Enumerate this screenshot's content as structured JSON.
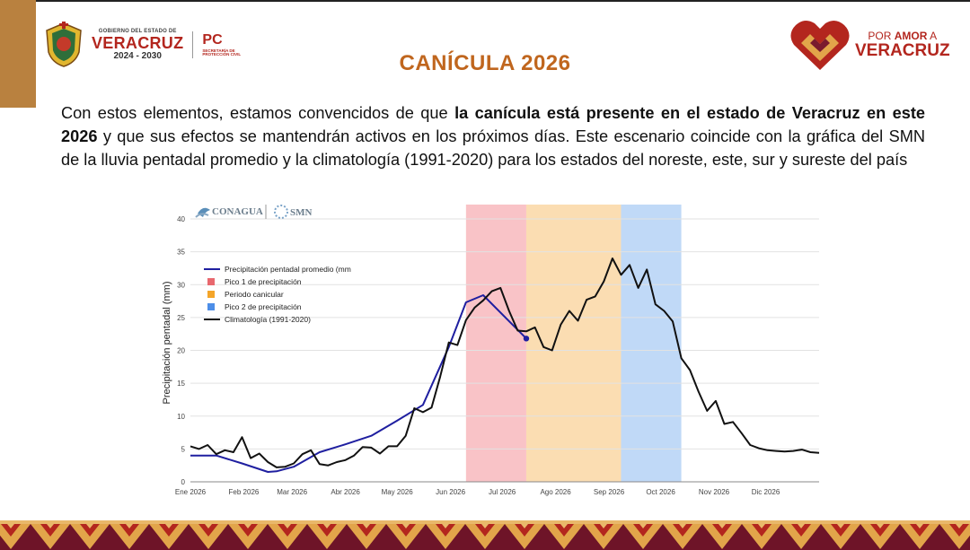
{
  "header": {
    "gov_small": "GOBIERNO DEL ESTADO DE",
    "gov_big": "VERACRUZ",
    "gov_years": "2024 - 2030",
    "pc_big": "PC",
    "pc_small": "SECRETARÍA DE PROTECCIÓN CIVIL",
    "amor_small_1": "POR ",
    "amor_small_2": "AMOR",
    "amor_small_3": " A",
    "amor_big": "VERACRUZ"
  },
  "slide": {
    "title": "CANÍCULA 2026",
    "p1": "Con estos elementos, estamos convencidos de que ",
    "p2": "la canícula está presente en el estado de Veracruz en este 2026",
    "p3": " y que sus efectos se mantendrán activos en los próximos días. Este escenario coincide con la gráfica del SMN de la lluvia pentadal promedio y la climatología (1991-2020) para los estados del noreste, este, sur y sureste del país"
  },
  "chart_data": {
    "type": "line",
    "logos": [
      "CONAGUA",
      "SMN"
    ],
    "ylabel": "Precipitación pentadal (mm)",
    "xlabel": "",
    "ylim": [
      0,
      40
    ],
    "yticks": [
      0,
      5,
      10,
      15,
      20,
      25,
      30,
      35,
      40
    ],
    "xlim": [
      0,
      365
    ],
    "xticks": [
      {
        "label": "Ene 2026",
        "day": 0
      },
      {
        "label": "Feb 2026",
        "day": 31
      },
      {
        "label": "Mar 2026",
        "day": 59
      },
      {
        "label": "Abr 2026",
        "day": 90
      },
      {
        "label": "May 2026",
        "day": 120
      },
      {
        "label": "Jun 2026",
        "day": 151
      },
      {
        "label": "Jul 2026",
        "day": 181
      },
      {
        "label": "Ago 2026",
        "day": 212
      },
      {
        "label": "Sep 2026",
        "day": 243
      },
      {
        "label": "Oct 2026",
        "day": 273
      },
      {
        "label": "Nov 2026",
        "day": 304
      },
      {
        "label": "Dic 2026",
        "day": 334
      }
    ],
    "bands": [
      {
        "name": "Pico 1 de precipitación",
        "start": 160,
        "end": 195,
        "color": "#f8b9bd"
      },
      {
        "name": "Periodo canicular",
        "start": 195,
        "end": 250,
        "color": "#fad7a4"
      },
      {
        "name": "Pico 2 de precipitación",
        "start": 250,
        "end": 285,
        "color": "#b5d2f6"
      }
    ],
    "legend_position": "top-left",
    "series": [
      {
        "name": "Precipitación pentadal promedio (mm",
        "color": "#1f1fa0",
        "x": [
          0,
          15,
          30,
          45,
          50,
          60,
          75,
          90,
          105,
          120,
          135,
          150,
          160,
          170,
          195
        ],
        "y": [
          4.0,
          4.0,
          2.8,
          1.5,
          1.6,
          2.3,
          4.5,
          5.7,
          7.0,
          9.3,
          11.7,
          20.5,
          27.3,
          28.4,
          21.8
        ],
        "endpoint_marker": true
      },
      {
        "name": "Climatología (1991-2020)",
        "color": "#111111",
        "x": [
          0,
          5,
          10,
          15,
          20,
          25,
          30,
          35,
          40,
          45,
          50,
          55,
          60,
          65,
          70,
          75,
          80,
          85,
          90,
          95,
          100,
          105,
          110,
          115,
          120,
          125,
          130,
          135,
          140,
          145,
          150,
          155,
          160,
          165,
          170,
          175,
          180,
          185,
          190,
          195,
          200,
          205,
          210,
          215,
          220,
          225,
          230,
          235,
          240,
          245,
          250,
          255,
          260,
          265,
          270,
          275,
          280,
          285,
          290,
          295,
          300,
          305,
          310,
          315,
          320,
          325,
          330,
          335,
          340,
          345,
          350,
          355,
          360,
          365
        ],
        "y": [
          5.4,
          5.0,
          5.6,
          4.2,
          4.8,
          4.5,
          6.8,
          3.6,
          4.3,
          3.0,
          2.2,
          2.3,
          2.8,
          4.2,
          4.8,
          2.7,
          2.5,
          3.0,
          3.3,
          4.0,
          5.3,
          5.2,
          4.3,
          5.4,
          5.4,
          7.0,
          11.2,
          10.6,
          11.3,
          16.0,
          21.2,
          20.8,
          24.6,
          26.5,
          27.6,
          29.0,
          29.5,
          26.0,
          23.0,
          22.9,
          23.5,
          20.5,
          20.0,
          23.9,
          26.0,
          24.5,
          27.7,
          28.2,
          30.5,
          34.0,
          31.5,
          33.0,
          29.5,
          32.3,
          27.0,
          26.0,
          24.4,
          18.8,
          17.0,
          13.7,
          10.8,
          12.3,
          8.8,
          9.1,
          7.4,
          5.6,
          5.1,
          4.8,
          4.7,
          4.6,
          4.7,
          4.9,
          4.5,
          4.4
        ]
      }
    ]
  }
}
